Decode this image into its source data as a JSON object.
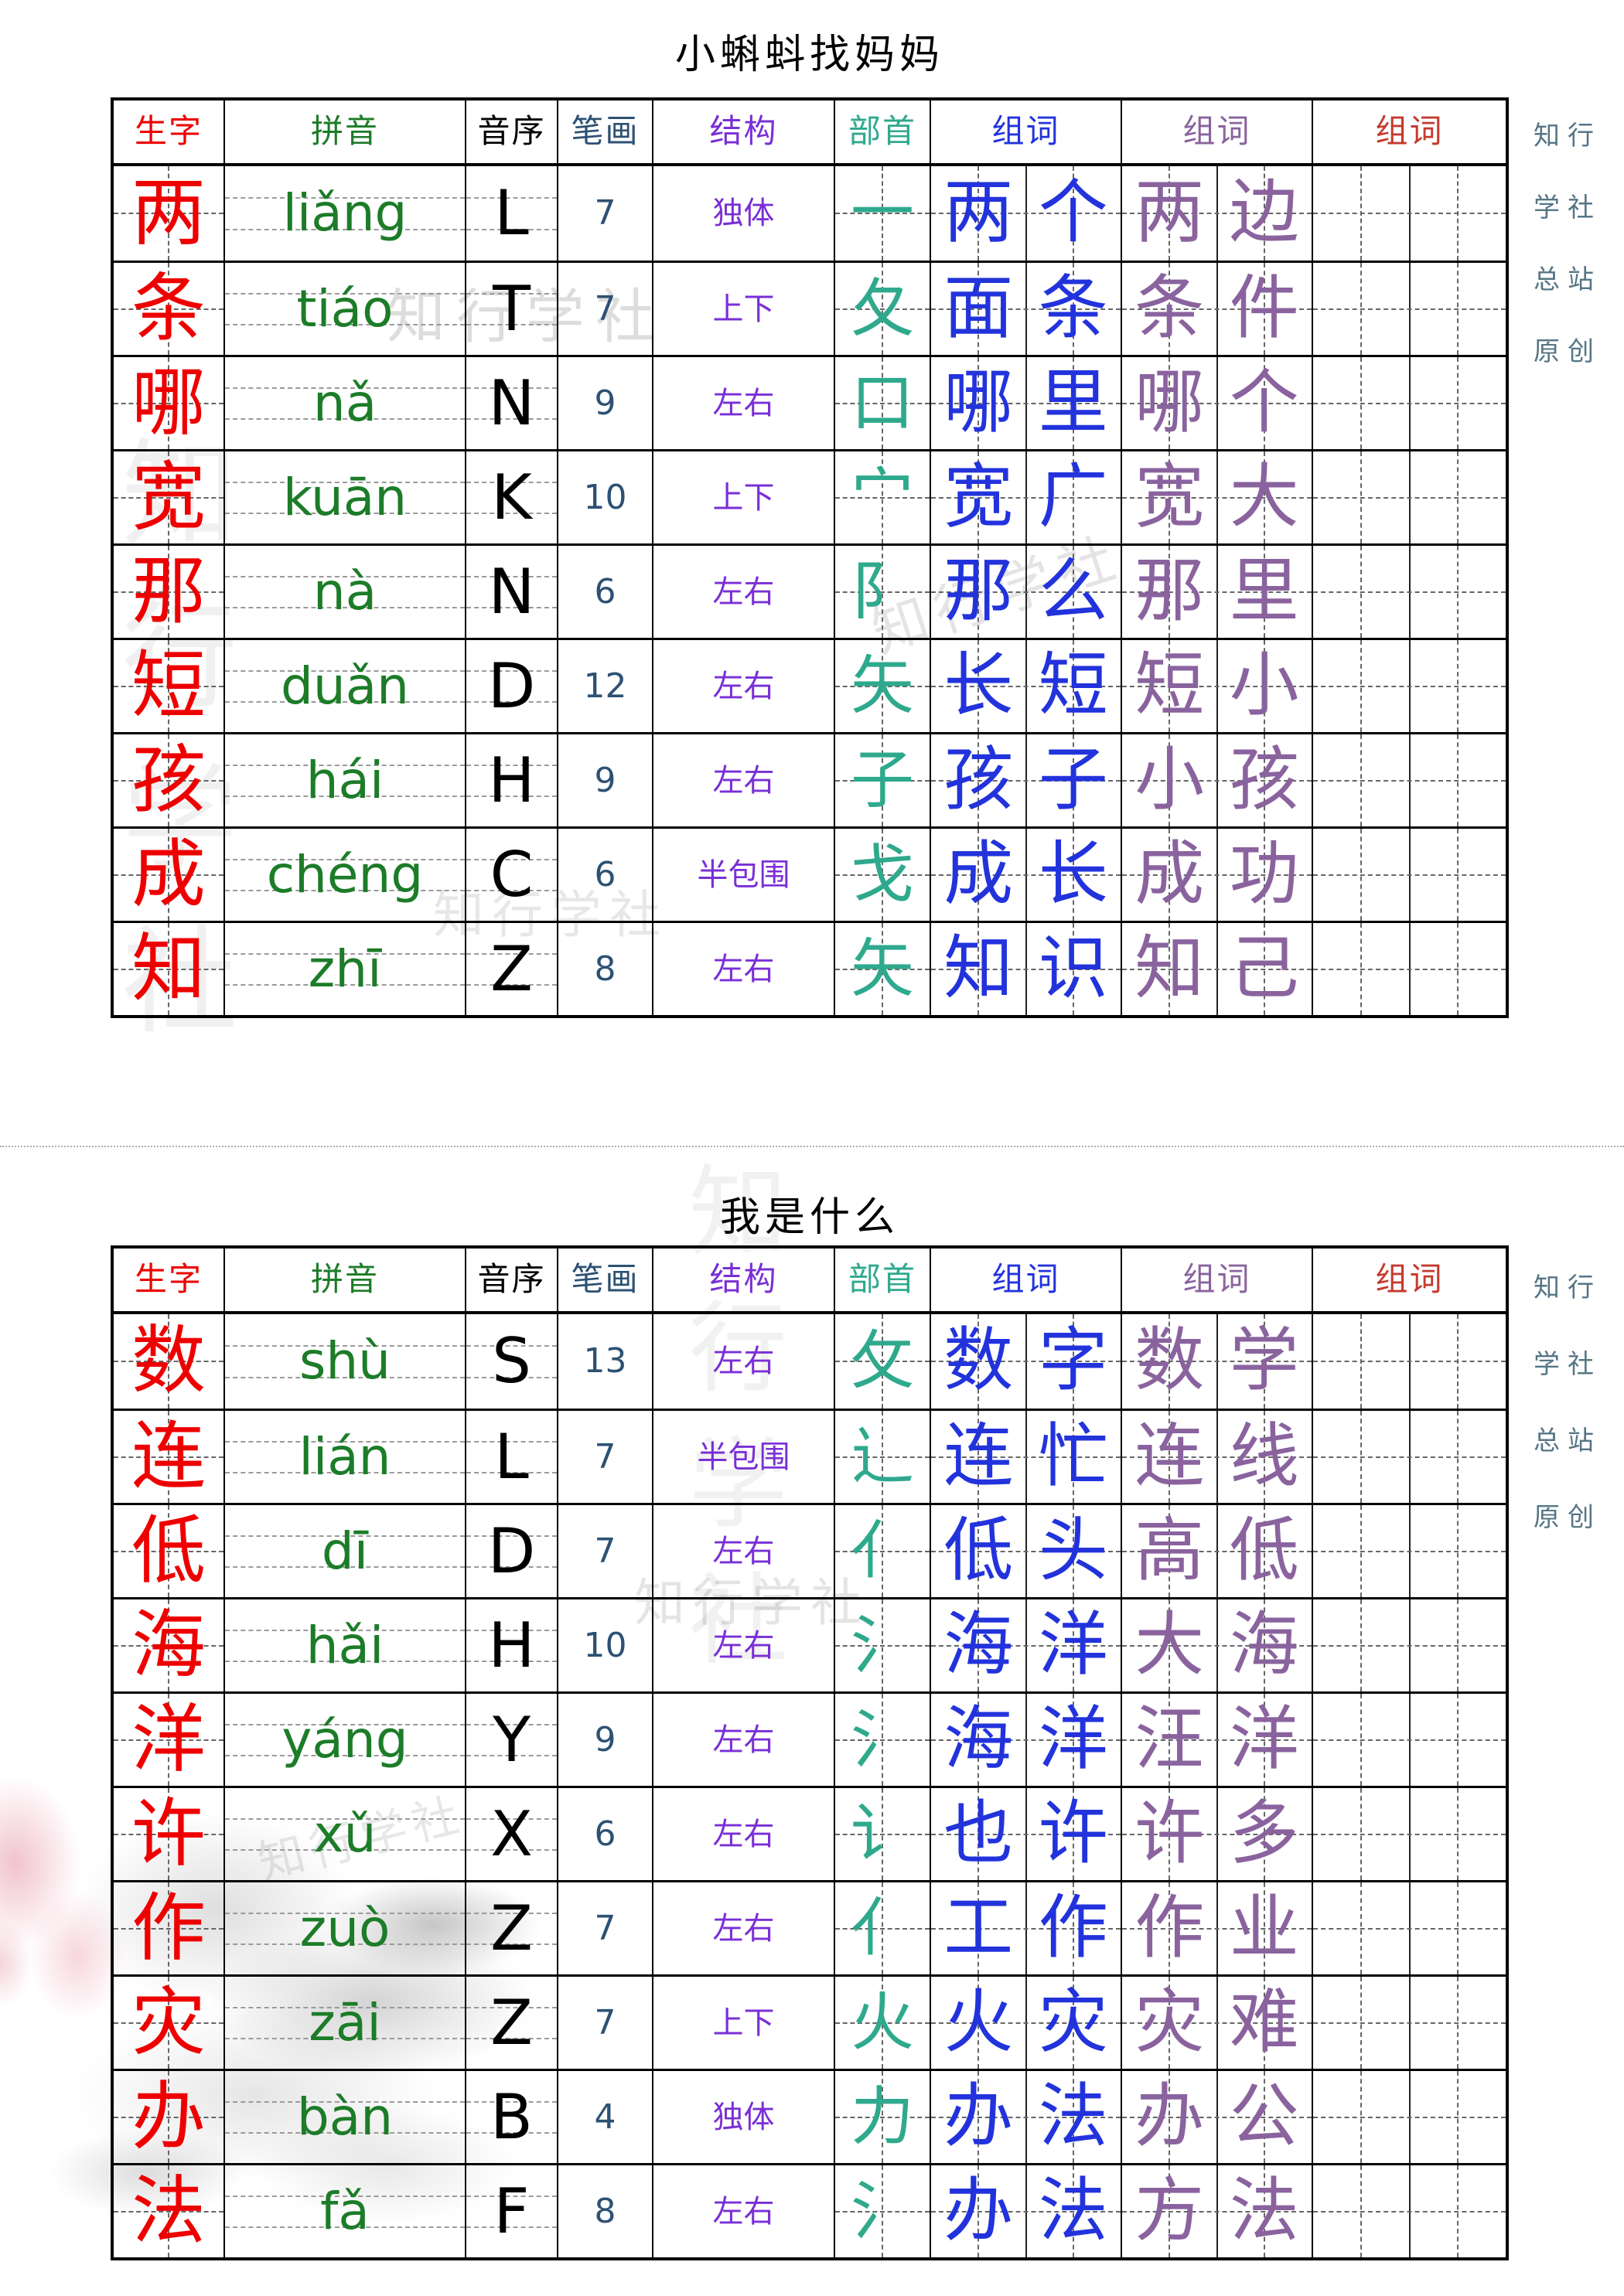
{
  "page": {
    "brand_vertical": [
      "知行",
      "学社",
      "总站",
      "原创"
    ],
    "watermark_text": "知行学社"
  },
  "palette": {
    "char_red": "#ee0000",
    "pinyin_green": "#1c7c28",
    "initial_black": "#000000",
    "strokes_navy": "#2d5173",
    "structure_purple": "#7a2fd6",
    "radical_teal": "#2fa98d",
    "word_blue": "#2233dc",
    "word_mauve": "#8a639e",
    "word_red": "#c53a2e",
    "brand_slate": "#567585"
  },
  "tables": [
    {
      "title": "小蝌蚪找妈妈",
      "headers": [
        {
          "key": "shengzi",
          "label": "生字",
          "color": "char_red"
        },
        {
          "key": "pinyin",
          "label": "拼音",
          "color": "pinyin_green"
        },
        {
          "key": "yinxu",
          "label": "音序",
          "color": "initial_black"
        },
        {
          "key": "bihua",
          "label": "笔画",
          "color": "strokes_navy"
        },
        {
          "key": "jiegou",
          "label": "结构",
          "color": "structure_purple"
        },
        {
          "key": "bushou",
          "label": "部首",
          "color": "radical_teal"
        },
        {
          "key": "zuci1",
          "label": "组词",
          "color": "word_blue"
        },
        {
          "key": "zuci2",
          "label": "组词",
          "color": "word_mauve"
        },
        {
          "key": "zuci3",
          "label": "组词",
          "color": "word_red"
        }
      ],
      "rows": [
        {
          "char": "两",
          "pinyin": "liǎng",
          "initial": "L",
          "strokes": "7",
          "structure": "独体",
          "radical": "一",
          "word1": "两个",
          "word2": "两边",
          "word3": ""
        },
        {
          "char": "条",
          "pinyin": "tiáo",
          "initial": "T",
          "strokes": "7",
          "structure": "上下",
          "radical": "夂",
          "word1": "面条",
          "word2": "条件",
          "word3": ""
        },
        {
          "char": "哪",
          "pinyin": "nǎ",
          "initial": "N",
          "strokes": "9",
          "structure": "左右",
          "radical": "口",
          "word1": "哪里",
          "word2": "哪个",
          "word3": ""
        },
        {
          "char": "宽",
          "pinyin": "kuān",
          "initial": "K",
          "strokes": "10",
          "structure": "上下",
          "radical": "宀",
          "word1": "宽广",
          "word2": "宽大",
          "word3": ""
        },
        {
          "char": "那",
          "pinyin": "nà",
          "initial": "N",
          "strokes": "6",
          "structure": "左右",
          "radical": "阝",
          "word1": "那么",
          "word2": "那里",
          "word3": ""
        },
        {
          "char": "短",
          "pinyin": "duǎn",
          "initial": "D",
          "strokes": "12",
          "structure": "左右",
          "radical": "矢",
          "word1": "长短",
          "word2": "短小",
          "word3": ""
        },
        {
          "char": "孩",
          "pinyin": "hái",
          "initial": "H",
          "strokes": "9",
          "structure": "左右",
          "radical": "子",
          "word1": "孩子",
          "word2": "小孩",
          "word3": ""
        },
        {
          "char": "成",
          "pinyin": "chéng",
          "initial": "C",
          "strokes": "6",
          "structure": "半包围",
          "radical": "戈",
          "word1": "成长",
          "word2": "成功",
          "word3": ""
        },
        {
          "char": "知",
          "pinyin": "zhī",
          "initial": "Z",
          "strokes": "8",
          "structure": "左右",
          "radical": "矢",
          "word1": "知识",
          "word2": "知己",
          "word3": ""
        }
      ]
    },
    {
      "title": "我是什么",
      "headers": [
        {
          "key": "shengzi",
          "label": "生字",
          "color": "char_red"
        },
        {
          "key": "pinyin",
          "label": "拼音",
          "color": "pinyin_green"
        },
        {
          "key": "yinxu",
          "label": "音序",
          "color": "initial_black"
        },
        {
          "key": "bihua",
          "label": "笔画",
          "color": "strokes_navy"
        },
        {
          "key": "jiegou",
          "label": "结构",
          "color": "structure_purple"
        },
        {
          "key": "bushou",
          "label": "部首",
          "color": "radical_teal"
        },
        {
          "key": "zuci1",
          "label": "组词",
          "color": "word_blue"
        },
        {
          "key": "zuci2",
          "label": "组词",
          "color": "word_mauve"
        },
        {
          "key": "zuci3",
          "label": "组词",
          "color": "word_red"
        }
      ],
      "rows": [
        {
          "char": "数",
          "pinyin": "shù",
          "initial": "S",
          "strokes": "13",
          "structure": "左右",
          "radical": "攵",
          "word1": "数字",
          "word2": "数学",
          "word3": ""
        },
        {
          "char": "连",
          "pinyin": "lián",
          "initial": "L",
          "strokes": "7",
          "structure": "半包围",
          "radical": "辶",
          "word1": "连忙",
          "word2": "连线",
          "word3": ""
        },
        {
          "char": "低",
          "pinyin": "dī",
          "initial": "D",
          "strokes": "7",
          "structure": "左右",
          "radical": "亻",
          "word1": "低头",
          "word2": "高低",
          "word3": ""
        },
        {
          "char": "海",
          "pinyin": "hǎi",
          "initial": "H",
          "strokes": "10",
          "structure": "左右",
          "radical": "氵",
          "word1": "海洋",
          "word2": "大海",
          "word3": ""
        },
        {
          "char": "洋",
          "pinyin": "yáng",
          "initial": "Y",
          "strokes": "9",
          "structure": "左右",
          "radical": "氵",
          "word1": "海洋",
          "word2": "汪洋",
          "word3": ""
        },
        {
          "char": "许",
          "pinyin": "xǔ",
          "initial": "X",
          "strokes": "6",
          "structure": "左右",
          "radical": "讠",
          "word1": "也许",
          "word2": "许多",
          "word3": ""
        },
        {
          "char": "作",
          "pinyin": "zuò",
          "initial": "Z",
          "strokes": "7",
          "structure": "左右",
          "radical": "亻",
          "word1": "工作",
          "word2": "作业",
          "word3": ""
        },
        {
          "char": "灾",
          "pinyin": "zāi",
          "initial": "Z",
          "strokes": "7",
          "structure": "上下",
          "radical": "火",
          "word1": "火灾",
          "word2": "灾难",
          "word3": ""
        },
        {
          "char": "办",
          "pinyin": "bàn",
          "initial": "B",
          "strokes": "4",
          "structure": "独体",
          "radical": "力",
          "word1": "办法",
          "word2": "办公",
          "word3": ""
        },
        {
          "char": "法",
          "pinyin": "fǎ",
          "initial": "F",
          "strokes": "8",
          "structure": "左右",
          "radical": "氵",
          "word1": "办法",
          "word2": "方法",
          "word3": ""
        }
      ]
    }
  ]
}
